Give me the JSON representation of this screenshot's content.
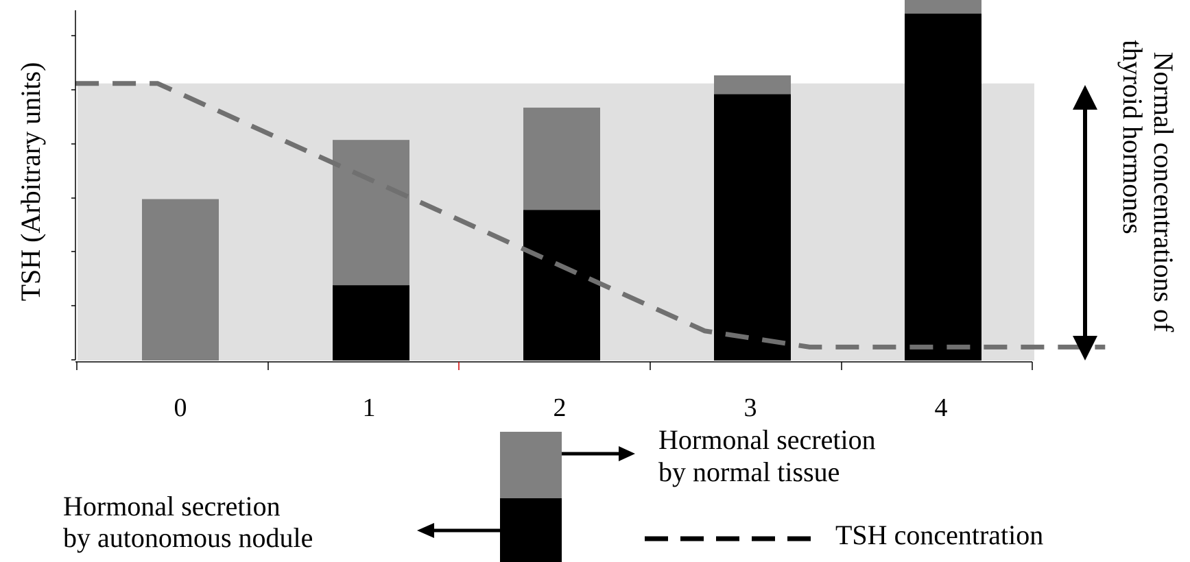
{
  "chart_data": {
    "type": "bar",
    "stacked": true,
    "categories": [
      "0",
      "1",
      "2",
      "3",
      "4"
    ],
    "series": [
      {
        "name": "Hormonal secretion by autonomous nodule",
        "color": "#000000",
        "values": [
          0,
          1.4,
          2.8,
          4.95,
          6.45
        ]
      },
      {
        "name": "Hormonal secretion by normal tissue",
        "color": "#808080",
        "values": [
          3.0,
          2.7,
          1.9,
          0.35,
          0.28
        ]
      }
    ],
    "tsh_line": {
      "name": "TSH concentration",
      "color": "#707070",
      "points": [
        [
          -0.55,
          5.15
        ],
        [
          -0.12,
          5.15
        ],
        [
          2.75,
          0.55
        ],
        [
          3.3,
          0.25
        ],
        [
          4.85,
          0.25
        ]
      ]
    },
    "normal_range": {
      "low": 0,
      "high": 5.15,
      "color": "#e0e0e0"
    },
    "ylabel": "TSH (Arbitrary units)",
    "right_label": [
      "Normal concentrations of",
      "thyroid hormones"
    ],
    "ylim": [
      0,
      6.6
    ],
    "grid": false
  },
  "legend": {
    "normal_tissue": [
      "Hormonal secretion",
      "by normal tissue"
    ],
    "autonomous_nodule": [
      "Hormonal secretion",
      "by autonomous nodule"
    ],
    "tsh": "TSH concentration"
  }
}
